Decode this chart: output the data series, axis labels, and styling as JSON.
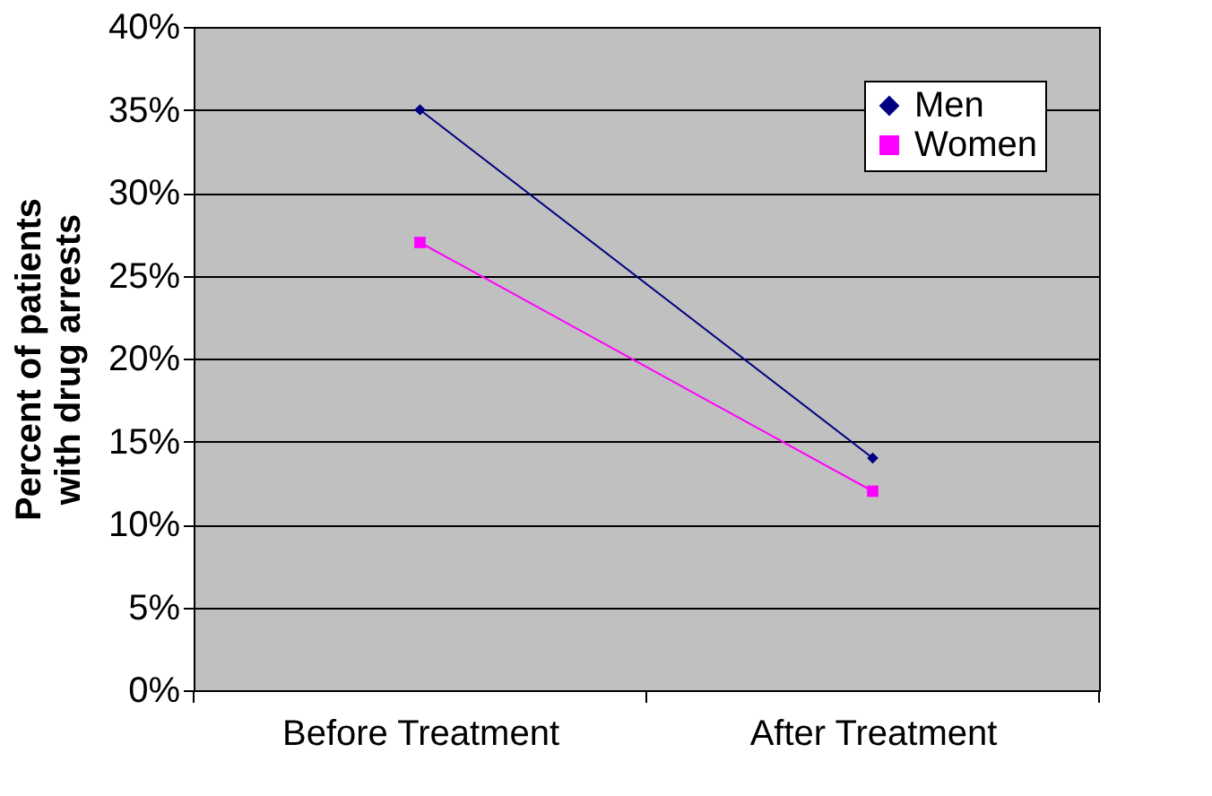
{
  "chart_data": {
    "type": "line",
    "categories": [
      "Before Treatment",
      "After Treatment"
    ],
    "ylabel": "Percent of patients\nwith drug arrests",
    "series": [
      {
        "name": "Men",
        "color": "#000080",
        "values": [
          35,
          14
        ],
        "marker": "diamond"
      },
      {
        "name": "Women",
        "color": "#ff00ff",
        "values": [
          27,
          12
        ],
        "marker": "square"
      }
    ],
    "ylim": [
      0,
      40
    ],
    "yticks": [
      {
        "value": 0,
        "label": "0%"
      },
      {
        "value": 5,
        "label": "5%"
      },
      {
        "value": 10,
        "label": "10%"
      },
      {
        "value": 15,
        "label": "15%"
      },
      {
        "value": 20,
        "label": "20%"
      },
      {
        "value": 25,
        "label": "25%"
      },
      {
        "value": 30,
        "label": "30%"
      },
      {
        "value": 35,
        "label": "35%"
      },
      {
        "value": 40,
        "label": "40%"
      }
    ],
    "grid": "y",
    "legend": "top right",
    "line_style": "solid"
  }
}
